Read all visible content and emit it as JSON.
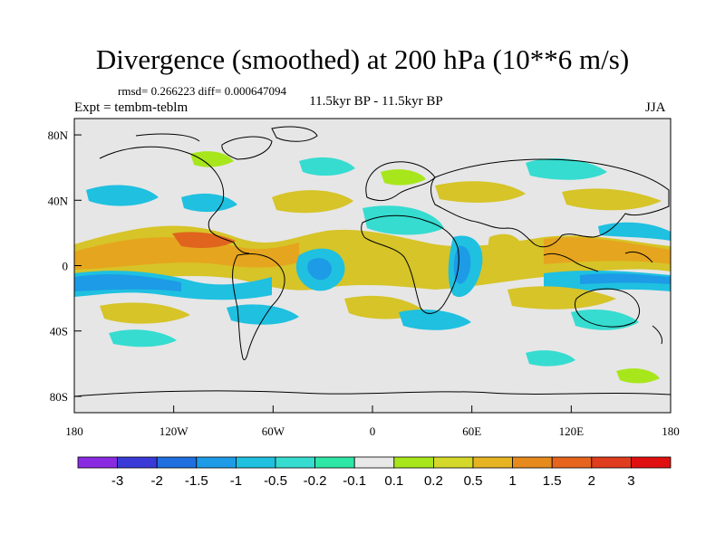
{
  "header": {
    "title": "Divergence (smoothed) at 200 hPa (10**6 m/s)",
    "stats": "rmsd= 0.266223 diff= 0.000647094",
    "experiment": "Expt = tembm-teblm",
    "period": "11.5kyr BP - 11.5kyr BP",
    "season": "JJA"
  },
  "map": {
    "lon_range": [
      -180,
      180
    ],
    "lat_range": [
      -90,
      90
    ],
    "background_color": "#e6e6e6",
    "x_ticks": [
      {
        "lon": -180,
        "label": "180"
      },
      {
        "lon": -120,
        "label": "120W"
      },
      {
        "lon": -60,
        "label": "60W"
      },
      {
        "lon": 0,
        "label": "0"
      },
      {
        "lon": 60,
        "label": "60E"
      },
      {
        "lon": 120,
        "label": "120E"
      },
      {
        "lon": 180,
        "label": "180"
      }
    ],
    "y_ticks": [
      {
        "lat": 80,
        "label": "80N"
      },
      {
        "lat": 40,
        "label": "40N"
      },
      {
        "lat": 0,
        "label": "0"
      },
      {
        "lat": -40,
        "label": "40S"
      },
      {
        "lat": -80,
        "label": "80S"
      }
    ]
  },
  "colorbar": {
    "colors": [
      "#8a2be2",
      "#3a3ad8",
      "#1f6fe0",
      "#1d9be6",
      "#1fc0e0",
      "#36dcd0",
      "#2ee6a6",
      "#e8e8e8",
      "#a8e61c",
      "#d4d82a",
      "#e6b422",
      "#e68a1e",
      "#e6641e",
      "#e03c1e",
      "#e01010"
    ],
    "labels": [
      "-3",
      "-2",
      "-1.5",
      "-1",
      "-0.5",
      "-0.2",
      "-0.1",
      "0.1",
      "0.2",
      "0.5",
      "1",
      "1.5",
      "2",
      "3"
    ]
  }
}
